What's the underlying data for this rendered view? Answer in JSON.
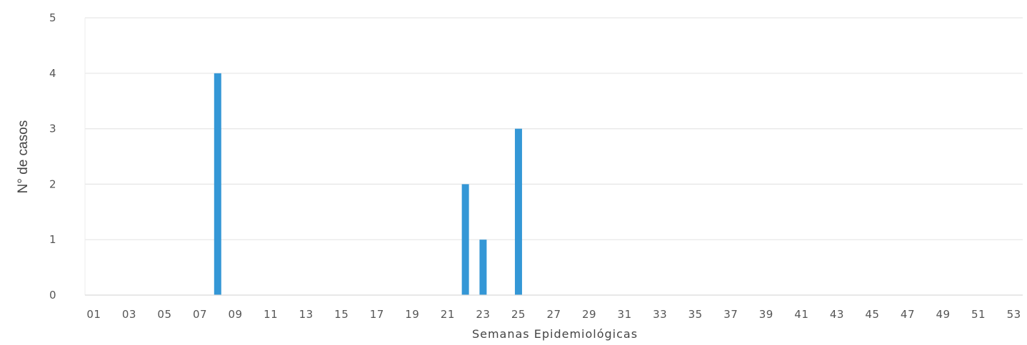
{
  "chart_data": {
    "type": "bar",
    "title": "",
    "xlabel": "Semanas Epidemiológicas",
    "ylabel": "N° de casos",
    "ylim": [
      0,
      5
    ],
    "yticks": [
      "0",
      "1",
      "2",
      "3",
      "4",
      "5"
    ],
    "categories": [
      "01",
      "02",
      "03",
      "04",
      "05",
      "06",
      "07",
      "08",
      "09",
      "10",
      "11",
      "12",
      "13",
      "14",
      "15",
      "16",
      "17",
      "18",
      "19",
      "20",
      "21",
      "22",
      "23",
      "24",
      "25",
      "26",
      "27",
      "28",
      "29",
      "30",
      "31",
      "32",
      "33",
      "34",
      "35",
      "36",
      "37",
      "38",
      "39",
      "40",
      "41",
      "42",
      "43",
      "44",
      "45",
      "46",
      "47",
      "48",
      "49",
      "50",
      "51",
      "52",
      "53"
    ],
    "xtick_labels": [
      "01",
      "03",
      "05",
      "07",
      "09",
      "11",
      "13",
      "15",
      "17",
      "19",
      "21",
      "23",
      "25",
      "27",
      "29",
      "31",
      "33",
      "35",
      "37",
      "39",
      "41",
      "43",
      "45",
      "47",
      "49",
      "51",
      "53"
    ],
    "values": [
      0,
      0,
      0,
      0,
      0,
      0,
      0,
      4,
      0,
      0,
      0,
      0,
      0,
      0,
      0,
      0,
      0,
      0,
      0,
      0,
      0,
      2,
      1,
      0,
      3,
      0,
      0,
      0,
      0,
      0,
      0,
      0,
      0,
      0,
      0,
      0,
      0,
      0,
      0,
      0,
      0,
      0,
      0,
      0,
      0,
      0,
      0,
      0,
      0,
      0,
      0,
      0,
      0
    ],
    "grid": true,
    "bar_color": "#3497d6",
    "grid_color": "#e6e6e6"
  }
}
